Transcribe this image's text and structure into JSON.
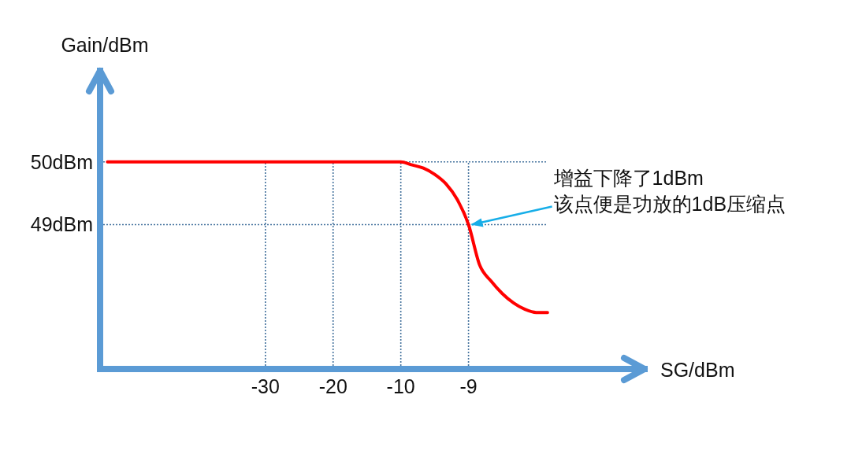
{
  "chart_data": {
    "type": "line",
    "xlabel": "SG/dBm",
    "ylabel": "Gain/dBm",
    "categories": [
      null,
      null,
      null,
      null,
      null,
      null,
      null,
      null,
      null,
      null,
      null,
      null,
      null,
      null,
      "-30",
      null,
      null,
      null,
      null,
      null,
      "-20",
      null,
      null,
      null,
      null,
      null,
      "-10",
      null,
      null,
      null,
      null,
      null,
      "-9",
      null,
      null,
      null,
      null,
      null,
      null,
      null,
      null,
      null,
      null,
      null,
      null,
      null,
      null,
      null
    ],
    "values": [
      50,
      50,
      50,
      50,
      50,
      50,
      50,
      50,
      50,
      50,
      50,
      50,
      50,
      50,
      50,
      50,
      50,
      50,
      50,
      50,
      50,
      50,
      50,
      50,
      50,
      50,
      50,
      49.95,
      49.9,
      49.8,
      49.65,
      49.4,
      49,
      48.35,
      48.1,
      47.9,
      47.75,
      47.65,
      47.6,
      47.6,
      null,
      null,
      null,
      null,
      null,
      null,
      null,
      null
    ],
    "color": "#ff0000",
    "ylim": [
      46.7,
      51.45
    ],
    "yticks": [
      {
        "value": 50,
        "label": "50dBm"
      },
      {
        "value": 49,
        "label": "49dBm"
      }
    ],
    "ref_lines": [
      {
        "axis": "x",
        "value": "-30",
        "line_style": "dotted",
        "color": "#44729d"
      },
      {
        "axis": "x",
        "value": "-20",
        "line_style": "dotted",
        "color": "#44729d"
      },
      {
        "axis": "x",
        "value": "-10",
        "line_style": "dotted",
        "color": "#44729d"
      },
      {
        "axis": "x",
        "value": "-9",
        "line_style": "dotted",
        "color": "#44729d"
      },
      {
        "axis": "y",
        "value": 50,
        "line_style": "dotted",
        "color": "#44729d"
      },
      {
        "axis": "y",
        "value": 49,
        "line_style": "dotted",
        "color": "#44729d"
      }
    ],
    "annotations": [
      {
        "text": "增益下降了1dBm\n该点便是功放的1dB压缩点",
        "x": "-9",
        "y": 49
      }
    ]
  }
}
